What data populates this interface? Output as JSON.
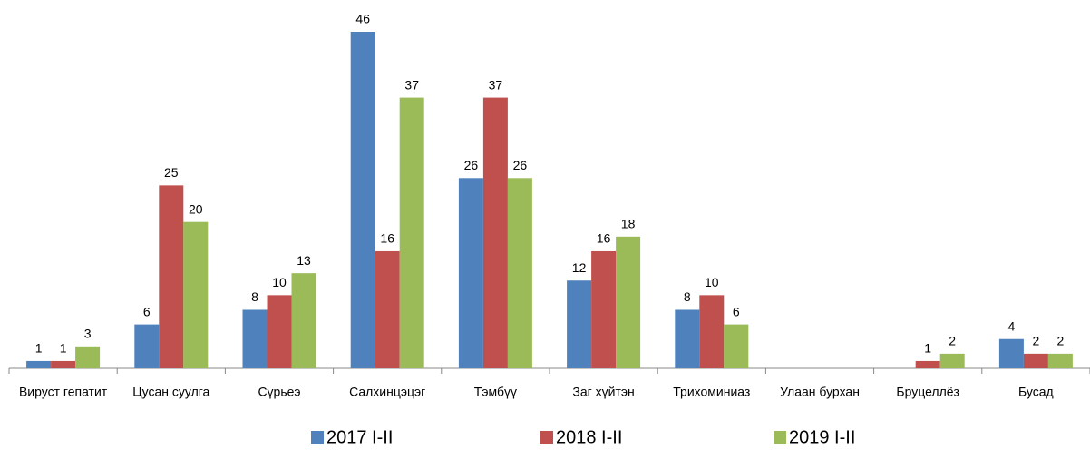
{
  "chart_data": {
    "type": "bar",
    "categories": [
      "Вируст гепатит",
      "Цусан суулга",
      "Сүрьеэ",
      "Салхинцэцэг",
      "Тэмбүү",
      "Заг хүйтэн",
      "Трихоминиаз",
      "Улаан бурхан",
      "Бруцеллёз",
      "Бусад"
    ],
    "series": [
      {
        "name": "2017 I-II",
        "color": "#4f81bd",
        "values": [
          1,
          6,
          8,
          46,
          26,
          12,
          8,
          null,
          null,
          4
        ]
      },
      {
        "name": "2018 I-II",
        "color": "#c0504d",
        "values": [
          1,
          25,
          10,
          16,
          37,
          16,
          10,
          null,
          1,
          2
        ]
      },
      {
        "name": "2019 I-II",
        "color": "#9bbb59",
        "values": [
          3,
          20,
          13,
          37,
          26,
          18,
          6,
          null,
          2,
          2
        ]
      }
    ],
    "legend": "bottom"
  }
}
